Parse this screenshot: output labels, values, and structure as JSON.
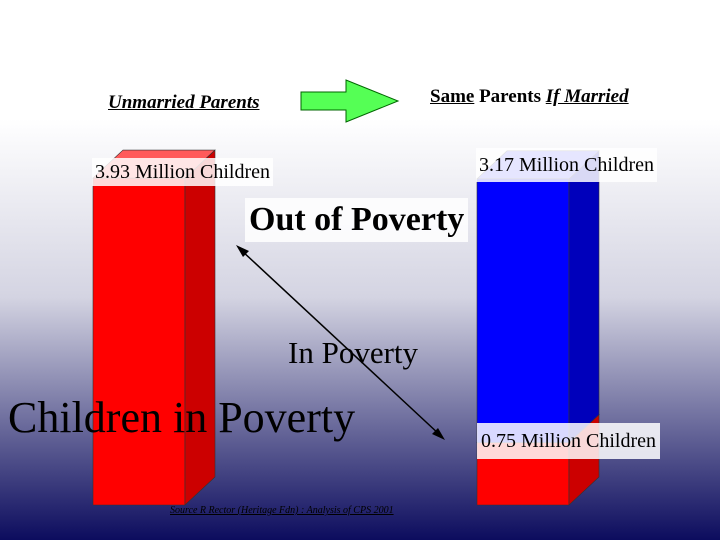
{
  "chart_data": {
    "type": "bar",
    "unit": "Million Children",
    "categories": [
      "Unmarried Parents",
      "Same Parents If Married"
    ],
    "series": [
      {
        "name": "In Poverty",
        "color": "#ff0000",
        "values": [
          3.93,
          0.75
        ]
      },
      {
        "name": "Out of Poverty",
        "color": "#0000ff",
        "values": [
          0,
          3.17
        ]
      }
    ],
    "ylim": [
      0,
      4.3
    ]
  },
  "labels": {
    "unmarried": "Unmarried Parents",
    "married_word1": "Same",
    "married_word2": " Parents ",
    "married_word3": "If Married",
    "left_value": "3.93 Million Children",
    "blue_value": "3.17 Million Children",
    "red_value": "0.75 Million Children",
    "out_of_poverty": "Out of Poverty",
    "in_poverty": "In Poverty",
    "children_in_poverty": "Children in Poverty",
    "source": "Source R Rector (Heritage Fdn) : Analysis of CPS 2001"
  },
  "colors": {
    "red_front": "#ff0000",
    "red_side": "#cc0000",
    "red_top": "#ff5a5a",
    "blue_front": "#0000ff",
    "blue_side": "#0000bb",
    "blue_top": "#5a5aff",
    "arrow_fill": "#55ff55"
  },
  "icons": {
    "transition_arrow": "right-arrow-icon",
    "diagonal_arrow": "double-headed-arrow-icon"
  }
}
